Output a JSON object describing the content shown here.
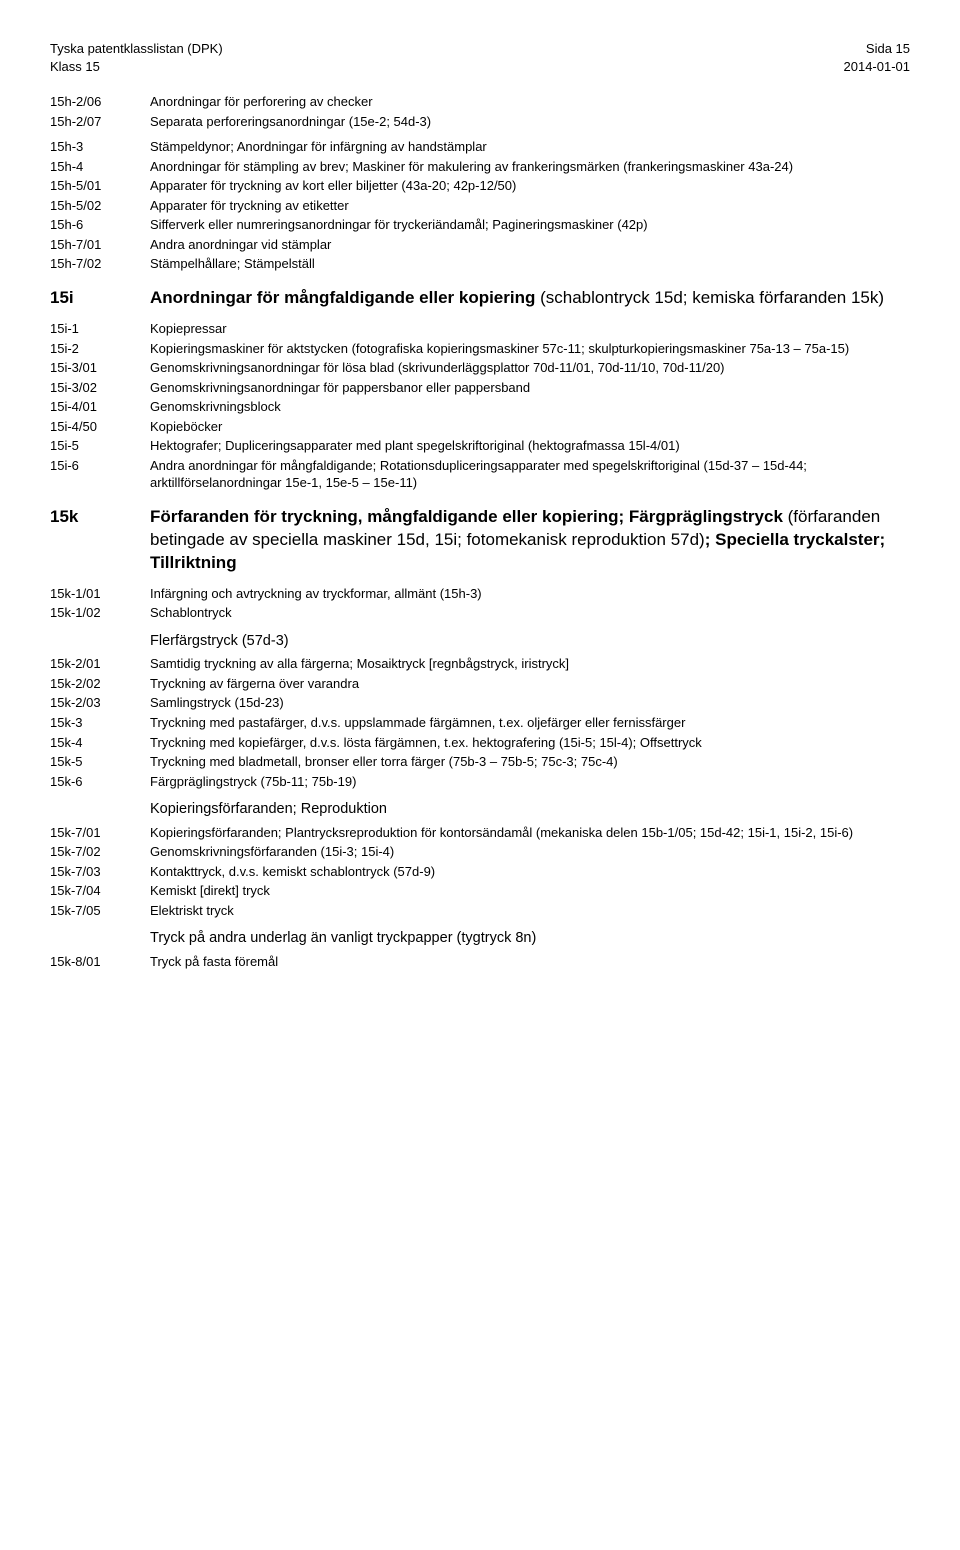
{
  "header": {
    "left1": "Tyska patentklasslistan (DPK)",
    "left2": "Klass 15",
    "right1": "Sida 15",
    "right2": "2014-01-01"
  },
  "rows": [
    {
      "code": "15h-2/06",
      "desc": "Anordningar för perforering av checker"
    },
    {
      "code": "15h-2/07",
      "desc": "Separata perforeringsanordningar (15e-2; 54d-3)"
    },
    {
      "spacer": "sm"
    },
    {
      "code": "15h-3",
      "desc": "Stämpeldynor; Anordningar för infärgning av handstämplar"
    },
    {
      "code": "15h-4",
      "desc": "Anordningar för stämpling av brev; Maskiner för makulering av frankeringsmärken (frankeringsmaskiner 43a-24)"
    },
    {
      "code": "15h-5/01",
      "desc": "Apparater för tryckning av kort eller biljetter (43a-20; 42p-12/50)"
    },
    {
      "code": "15h-5/02",
      "desc": "Apparater för tryckning av etiketter"
    },
    {
      "code": "15h-6",
      "desc": "Sifferverk eller numreringsanordningar för tryckeriändamål; Pagineringsmaskiner (42p)"
    },
    {
      "code": "15h-7/01",
      "desc": "Andra anordningar vid stämplar"
    },
    {
      "code": "15h-7/02",
      "desc": "Stämpelhållare; Stämpelställ"
    },
    {
      "section": true,
      "code": "15i",
      "bold": "Anordningar för mångfaldigande eller kopiering",
      "light": " (schablontryck 15d; kemiska förfaranden 15k)"
    },
    {
      "code": "15i-1",
      "desc": "Kopiepressar"
    },
    {
      "code": "15i-2",
      "desc": "Kopieringsmaskiner för aktstycken (fotografiska kopieringsmaskiner 57c-11; skulpturkopieringsmaskiner 75a-13 – 75a-15)"
    },
    {
      "code": "15i-3/01",
      "desc": "Genomskrivningsanordningar för lösa blad (skrivunderläggsplattor 70d-11/01, 70d-11/10, 70d-11/20)"
    },
    {
      "code": "15i-3/02",
      "desc": "Genomskrivningsanordningar för pappersbanor eller pappersband"
    },
    {
      "code": "15i-4/01",
      "desc": "Genomskrivningsblock"
    },
    {
      "code": "15i-4/50",
      "desc": "Kopieböcker"
    },
    {
      "code": "15i-5",
      "desc": "Hektografer; Dupliceringsapparater med plant spegelskriftoriginal (hektografmassa 15l-4/01)"
    },
    {
      "code": "15i-6",
      "desc": "Andra anordningar för mångfaldigande; Rotationsdupliceringsapparater med spegelskriftoriginal (15d-37 – 15d-44; arktillförselanordningar 15e-1, 15e-5 – 15e-11)"
    },
    {
      "section": true,
      "code": "15k",
      "bold": "Förfaranden för tryckning, mångfaldigande eller kopiering; Färgpräglingstryck",
      "light": " (förfaranden betingade av speciella maskiner 15d, 15i; fotomekanisk reproduktion 57d)",
      "bold2": "; Speciella tryckalster; Tillriktning"
    },
    {
      "code": "15k-1/01",
      "desc": "Infärgning och avtryckning av tryckformar, allmänt (15h-3)"
    },
    {
      "code": "15k-1/02",
      "desc": "Schablontryck"
    },
    {
      "subheading": true,
      "desc": "Flerfärgstryck (57d-3)"
    },
    {
      "code": "15k-2/01",
      "desc": "Samtidig tryckning av alla färgerna; Mosaiktryck [regnbågstryck, iristryck]"
    },
    {
      "code": "15k-2/02",
      "desc": "Tryckning av färgerna över varandra"
    },
    {
      "code": "15k-2/03",
      "desc": "Samlingstryck (15d-23)"
    },
    {
      "code": "15k-3",
      "desc": "Tryckning med pastafärger, d.v.s. uppslammade färgämnen, t.ex. oljefärger eller fernissfärger"
    },
    {
      "code": "15k-4",
      "desc": "Tryckning med kopiefärger, d.v.s. lösta färgämnen, t.ex. hektografering (15i-5; 15l-4); Offsettryck"
    },
    {
      "code": "15k-5",
      "desc": "Tryckning med bladmetall, bronser eller torra färger (75b-3 – 75b-5; 75c-3; 75c-4)"
    },
    {
      "code": "15k-6",
      "desc": "Färgpräglingstryck (75b-11; 75b-19)"
    },
    {
      "subheading": true,
      "desc": "Kopieringsförfaranden; Reproduktion"
    },
    {
      "code": "15k-7/01",
      "desc": "Kopieringsförfaranden; Plantrycksreproduktion för kontorsändamål (mekaniska delen 15b-1/05; 15d-42; 15i-1, 15i-2, 15i-6)"
    },
    {
      "code": "15k-7/02",
      "desc": "Genomskrivningsförfaranden (15i-3; 15i-4)"
    },
    {
      "code": "15k-7/03",
      "desc": "Kontakttryck, d.v.s. kemiskt schablontryck (57d-9)"
    },
    {
      "code": "15k-7/04",
      "desc": "Kemiskt [direkt] tryck"
    },
    {
      "code": "15k-7/05",
      "desc": "Elektriskt tryck"
    },
    {
      "subheading": true,
      "desc": "Tryck på andra underlag än vanligt tryckpapper (tygtryck 8n)"
    },
    {
      "code": "15k-8/01",
      "desc": "Tryck på fasta föremål"
    }
  ]
}
